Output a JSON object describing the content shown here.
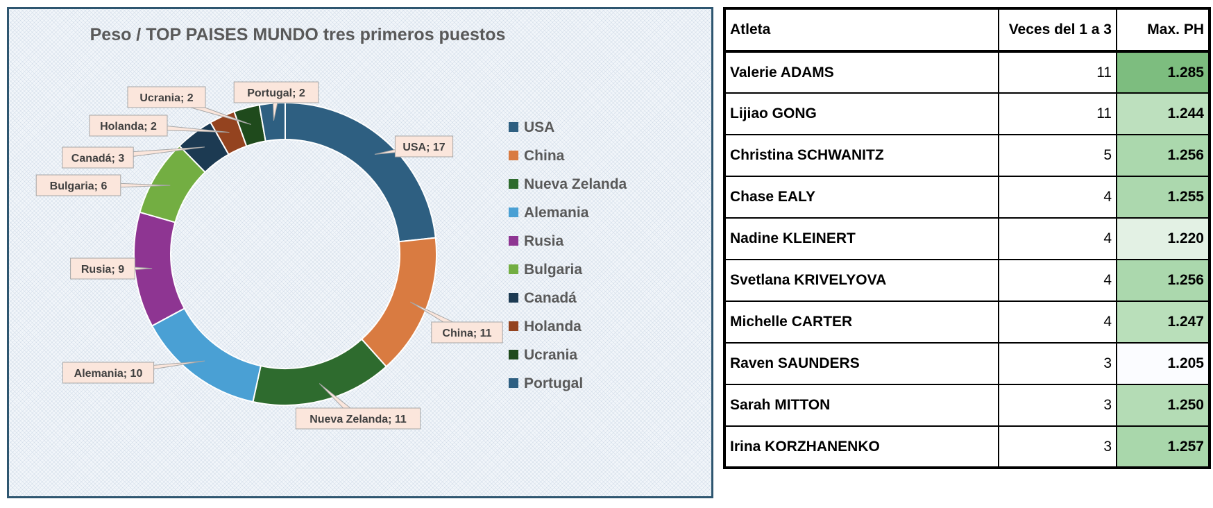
{
  "chart_data": {
    "type": "pie",
    "title": "Peso / TOP PAISES MUNDO tres primeros puestos",
    "categories": [
      "USA",
      "China",
      "Nueva Zelanda",
      "Alemania",
      "Rusia",
      "Bulgaria",
      "Canadá",
      "Holanda",
      "Ucrania",
      "Portugal"
    ],
    "values": [
      17,
      11,
      11,
      10,
      9,
      6,
      3,
      2,
      2,
      2
    ],
    "data_labels": [
      "USA; 17",
      "China; 11",
      "Nueva Zelanda; 11",
      "Alemania; 10",
      "Rusia; 9",
      "Bulgaria; 6",
      "Canadá; 3",
      "Holanda; 2",
      "Ucrania; 2",
      "Portugal; 2"
    ],
    "colors": [
      "#2e5f81",
      "#d97b41",
      "#2e6b2e",
      "#4aa0d4",
      "#8e3592",
      "#73ae42",
      "#1c3a52",
      "#94431f",
      "#1f4a1c",
      "#2e5f81"
    ],
    "legend_position": "right",
    "donut": true
  },
  "table": {
    "headers": [
      "Atleta",
      "Veces del 1 a 3",
      "Max. PH"
    ],
    "rows": [
      {
        "name": "Valerie ADAMS",
        "veces": "11",
        "max": "1.285",
        "shade": "#7dbd7f"
      },
      {
        "name": "Lijiao GONG",
        "veces": "11",
        "max": "1.244",
        "shade": "#bde0be"
      },
      {
        "name": "Christina SCHWANITZ",
        "veces": "5",
        "max": "1.256",
        "shade": "#abd8ad"
      },
      {
        "name": "Chase EALY",
        "veces": "4",
        "max": "1.255",
        "shade": "#acd8ae"
      },
      {
        "name": "Nadine KLEINERT",
        "veces": "4",
        "max": "1.220",
        "shade": "#e3f1e4"
      },
      {
        "name": "Svetlana KRIVELYOVA",
        "veces": "4",
        "max": "1.256",
        "shade": "#abd8ad"
      },
      {
        "name": "Michelle CARTER",
        "veces": "4",
        "max": "1.247",
        "shade": "#b9dfba"
      },
      {
        "name": "Raven SAUNDERS",
        "veces": "3",
        "max": "1.205",
        "shade": "#fbfcff"
      },
      {
        "name": "Sarah MITTON",
        "veces": "3",
        "max": "1.250",
        "shade": "#b4dcb5"
      },
      {
        "name": "Irina KORZHANENKO",
        "veces": "3",
        "max": "1.257",
        "shade": "#a9d7ab"
      }
    ]
  }
}
